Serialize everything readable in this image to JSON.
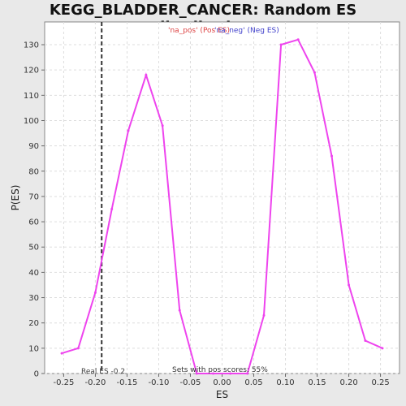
{
  "colors": {
    "series": "#ee44ee",
    "pos_legend": "#dd4444",
    "neg_legend": "#4444cc",
    "real_es_line": "#333333"
  },
  "chart_data": {
    "type": "line",
    "title": "KEGG_BLADDER_CANCER: Random ES distribution",
    "xlabel": "ES",
    "ylabel": "P(ES)",
    "xlim": [
      -0.28,
      0.28
    ],
    "ylim": [
      0,
      139
    ],
    "grid": true,
    "legend_placement": "top-center",
    "legend": [
      "'na_pos' (Pos ES)",
      "'na_neg' (Neg ES)"
    ],
    "x_ticks": [
      -0.25,
      -0.2,
      -0.15,
      -0.1,
      -0.05,
      0.0,
      0.05,
      0.1,
      0.15,
      0.2,
      0.25
    ],
    "x_tick_labels": [
      "-0.25",
      "-0.20",
      "-0.15",
      "-0.10",
      "-0.05",
      "0.00",
      "0.05",
      "0.10",
      "0.15",
      "0.20",
      "0.25"
    ],
    "y_ticks": [
      0,
      10,
      20,
      30,
      40,
      50,
      60,
      70,
      80,
      90,
      100,
      110,
      120,
      130
    ],
    "y_tick_labels": [
      "0",
      "10",
      "20",
      "30",
      "40",
      "50",
      "60",
      "70",
      "80",
      "90",
      "100",
      "110",
      "120",
      "130"
    ],
    "series": [
      {
        "x": [
          -0.253,
          -0.227,
          -0.2,
          -0.174,
          -0.148,
          -0.12,
          -0.094,
          -0.067,
          -0.04,
          -0.014,
          0.013,
          0.04,
          0.066,
          0.093,
          0.12,
          0.146,
          0.173,
          0.2,
          0.226,
          0.253
        ],
        "y": [
          8,
          10,
          32,
          65,
          96,
          118,
          98,
          25,
          0,
          0,
          0,
          0,
          23,
          130,
          132,
          119,
          86,
          35,
          13,
          10
        ]
      }
    ],
    "real_es": -0.19,
    "annotations": {
      "real_es_label": "Real ES -0.2",
      "pos_scores_label": "Sets with pos scores: 55%"
    }
  }
}
